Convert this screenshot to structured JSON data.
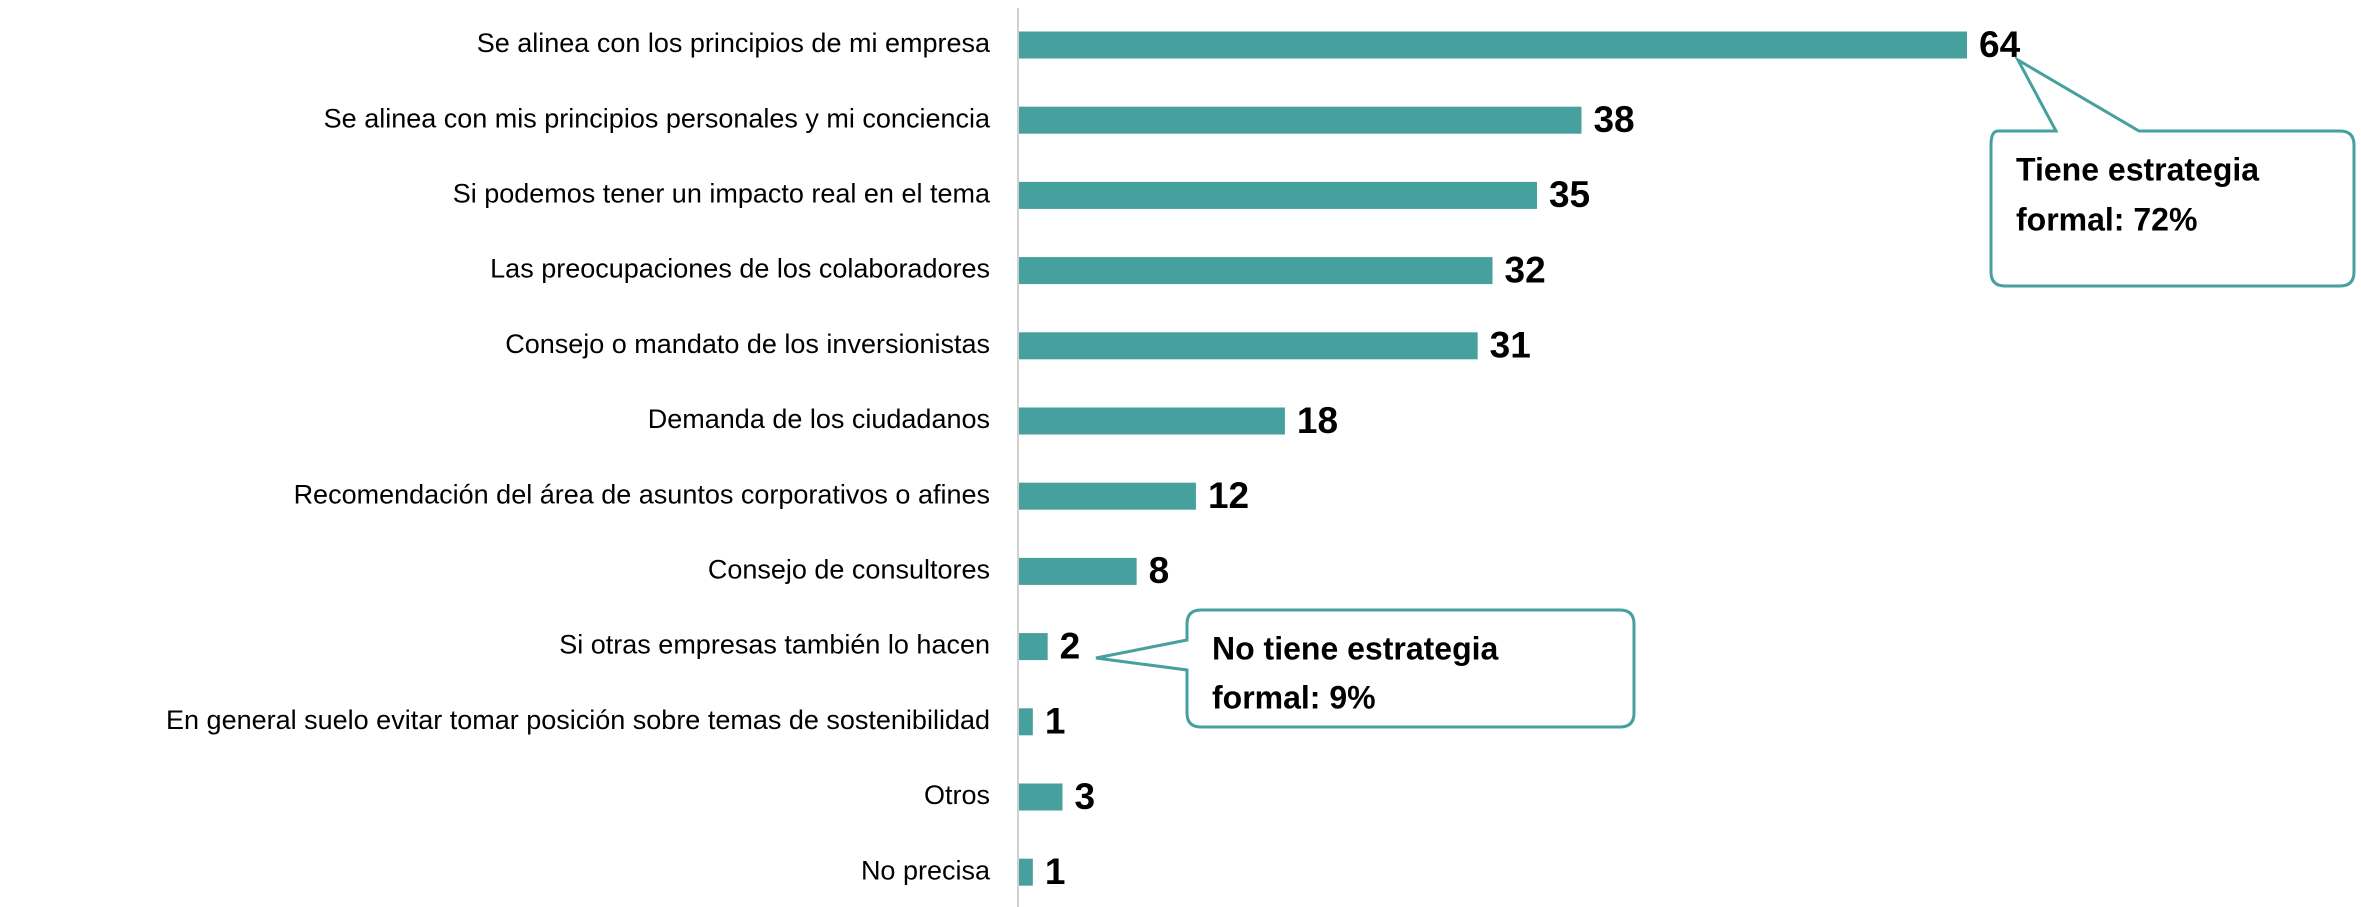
{
  "chart_data": {
    "type": "bar",
    "orientation": "horizontal",
    "color": "#45a09e",
    "categories": [
      "Se alinea con los principios de mi empresa",
      "Se alinea con mis principios personales y mi conciencia",
      "Si podemos tener un impacto real en el tema",
      "Las preocupaciones de los colaboradores",
      "Consejo o mandato de los inversionistas",
      "Demanda de los ciudadanos",
      "Recomendación del área de asuntos corporativos o afines",
      "Consejo de consultores",
      "Si otras empresas también lo hacen",
      "En general suelo evitar tomar posición sobre temas de sostenibilidad",
      "Otros",
      "No precisa"
    ],
    "values": [
      64,
      38,
      35,
      32,
      31,
      18,
      12,
      8,
      2,
      1,
      3,
      1
    ],
    "annotations": [
      {
        "lines": [
          "Tiene estrategia",
          "formal: 72%"
        ]
      },
      {
        "lines": [
          "No tiene estrategia",
          "formal: 9%"
        ]
      }
    ]
  }
}
